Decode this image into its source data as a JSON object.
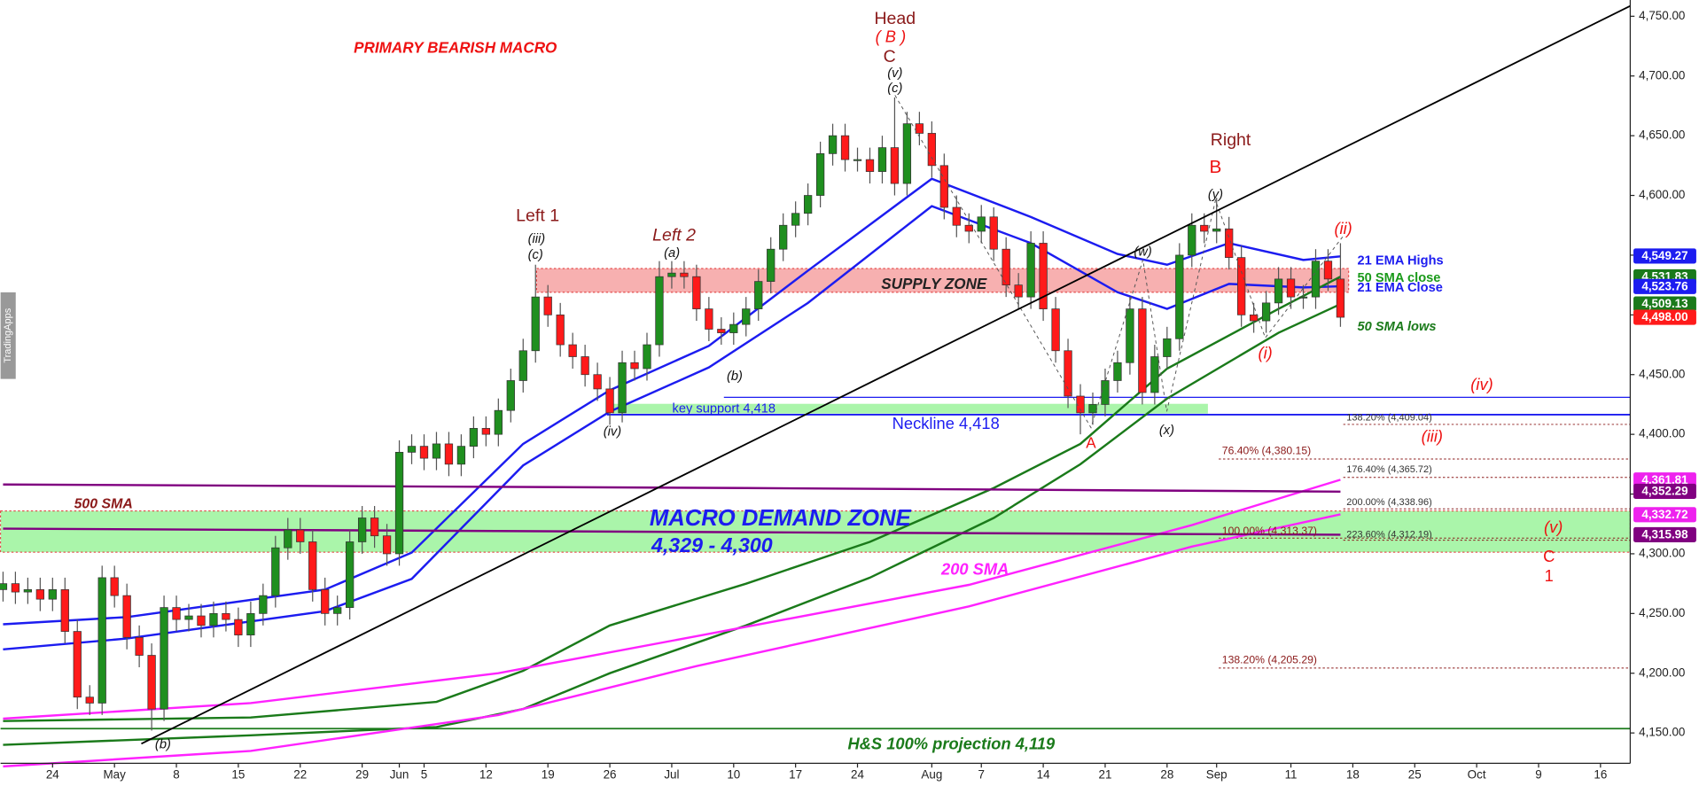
{
  "chart_data": {
    "type": "candlestick",
    "xlim": [
      -0.2,
      131.4
    ],
    "ylim": [
      4105.6,
      4763.6
    ],
    "grid": false,
    "up_color": "#1f8f1f",
    "down_color": "#ff1a1a",
    "xticks": [
      {
        "value": 4,
        "label": "24"
      },
      {
        "value": 9,
        "label": "May"
      },
      {
        "value": 14,
        "label": "8"
      },
      {
        "value": 19,
        "label": "15"
      },
      {
        "value": 24,
        "label": "22"
      },
      {
        "value": 29,
        "label": "29"
      },
      {
        "value": 32,
        "label": "Jun"
      },
      {
        "value": 34,
        "label": "5"
      },
      {
        "value": 39,
        "label": "12"
      },
      {
        "value": 44,
        "label": "19"
      },
      {
        "value": 49,
        "label": "26"
      },
      {
        "value": 54,
        "label": "Jul"
      },
      {
        "value": 59,
        "label": "10"
      },
      {
        "value": 64,
        "label": "17"
      },
      {
        "value": 69,
        "label": "24"
      },
      {
        "value": 75,
        "label": "Aug"
      },
      {
        "value": 79,
        "label": "7"
      },
      {
        "value": 84,
        "label": "14"
      },
      {
        "value": 89,
        "label": "21"
      },
      {
        "value": 94,
        "label": "28"
      },
      {
        "value": 98,
        "label": "Sep"
      },
      {
        "value": 104,
        "label": "11"
      },
      {
        "value": 109,
        "label": "18"
      },
      {
        "value": 114,
        "label": "25"
      },
      {
        "value": 119,
        "label": "Oct"
      },
      {
        "value": 124,
        "label": "9"
      },
      {
        "value": 129,
        "label": "16"
      }
    ],
    "yticks": [
      {
        "value": 4150,
        "label": "4,150.00"
      },
      {
        "value": 4200,
        "label": "4,200.00"
      },
      {
        "value": 4250,
        "label": "4,250.00"
      },
      {
        "value": 4300,
        "label": "4,300.00"
      },
      {
        "value": 4350,
        "label": "4,350.00"
      },
      {
        "value": 4400,
        "label": "4,400.00"
      },
      {
        "value": 4450,
        "label": "4,450.00"
      },
      {
        "value": 4500,
        "label": "4,500.00"
      },
      {
        "value": 4550,
        "label": "4,550.00"
      },
      {
        "value": 4600,
        "label": "4,600.00"
      },
      {
        "value": 4650,
        "label": "4,650.00"
      },
      {
        "value": 4700,
        "label": "4,700.00"
      },
      {
        "value": 4750,
        "label": "4,750.00"
      }
    ],
    "open": [
      4270,
      4275,
      4268,
      4270,
      4262,
      4270,
      4235,
      4180,
      4175,
      4280,
      4265,
      4230,
      4215,
      4170,
      4255,
      4245,
      4248,
      4240,
      4250,
      4245,
      4232,
      4250,
      4265,
      4305,
      4320,
      4310,
      4270,
      4250,
      4255,
      4310,
      4330,
      4315,
      4300,
      4385,
      4390,
      4380,
      4392,
      4375,
      4390,
      4405,
      4400,
      4420,
      4445,
      4470,
      4515,
      4500,
      4475,
      4465,
      4450,
      4438,
      4418,
      4460,
      4455,
      4475,
      4532,
      4535,
      4532,
      4505,
      4488,
      4485,
      4492,
      4505,
      4528,
      4555,
      4575,
      4585,
      4600,
      4635,
      4650,
      4630,
      4630,
      4620,
      4640,
      4610,
      4660,
      4652,
      4625,
      4590,
      4575,
      4570,
      4582,
      4555,
      4525,
      4515,
      4560,
      4505,
      4470,
      4432,
      4418,
      4425,
      4445,
      4460,
      4505,
      4435,
      4465,
      4480,
      4550,
      4575,
      4570,
      4572,
      4548,
      4500,
      4495,
      4510,
      4530,
      4515,
      4515,
      4545,
      4530
    ],
    "high": [
      4285,
      4285,
      4280,
      4280,
      4280,
      4280,
      4245,
      4190,
      4290,
      4290,
      4275,
      4240,
      4225,
      4265,
      4265,
      4258,
      4258,
      4260,
      4260,
      4255,
      4260,
      4275,
      4315,
      4330,
      4330,
      4320,
      4280,
      4265,
      4320,
      4340,
      4340,
      4325,
      4395,
      4400,
      4400,
      4402,
      4402,
      4400,
      4415,
      4415,
      4430,
      4455,
      4480,
      4542,
      4525,
      4510,
      4485,
      4475,
      4460,
      4448,
      4470,
      4470,
      4485,
      4545,
      4545,
      4545,
      4542,
      4515,
      4498,
      4502,
      4515,
      4538,
      4565,
      4585,
      4595,
      4610,
      4645,
      4660,
      4660,
      4640,
      4640,
      4650,
      4682,
      4670,
      4670,
      4662,
      4635,
      4600,
      4585,
      4592,
      4590,
      4565,
      4535,
      4570,
      4570,
      4515,
      4480,
      4442,
      4435,
      4455,
      4470,
      4515,
      4515,
      4475,
      4490,
      4560,
      4585,
      4585,
      4598,
      4582,
      4558,
      4510,
      4520,
      4540,
      4540,
      4525,
      4555,
      4555,
      4560
    ],
    "low": [
      4260,
      4258,
      4258,
      4252,
      4252,
      4225,
      4170,
      4165,
      4165,
      4255,
      4220,
      4205,
      4152,
      4160,
      4235,
      4235,
      4230,
      4230,
      4235,
      4222,
      4222,
      4240,
      4255,
      4295,
      4300,
      4260,
      4240,
      4240,
      4245,
      4300,
      4305,
      4290,
      4290,
      4375,
      4370,
      4370,
      4365,
      4365,
      4380,
      4390,
      4390,
      4410,
      4435,
      4460,
      4490,
      4465,
      4455,
      4440,
      4428,
      4408,
      4410,
      4445,
      4445,
      4465,
      4522,
      4522,
      4495,
      4478,
      4475,
      4475,
      4482,
      4495,
      4518,
      4545,
      4565,
      4575,
      4590,
      4625,
      4620,
      4620,
      4610,
      4610,
      4600,
      4600,
      4642,
      4615,
      4580,
      4565,
      4560,
      4560,
      4545,
      4515,
      4505,
      4505,
      4495,
      4460,
      4422,
      4400,
      4408,
      4415,
      4435,
      4450,
      4425,
      4425,
      4455,
      4470,
      4540,
      4560,
      4560,
      4538,
      4490,
      4485,
      4485,
      4500,
      4505,
      4505,
      4505,
      4520,
      4490
    ],
    "close": [
      4275,
      4268,
      4270,
      4262,
      4270,
      4235,
      4180,
      4175,
      4280,
      4265,
      4230,
      4215,
      4170,
      4255,
      4245,
      4248,
      4240,
      4250,
      4245,
      4232,
      4250,
      4265,
      4305,
      4320,
      4310,
      4270,
      4250,
      4255,
      4310,
      4330,
      4315,
      4300,
      4385,
      4390,
      4380,
      4392,
      4375,
      4390,
      4405,
      4400,
      4420,
      4445,
      4470,
      4515,
      4500,
      4475,
      4465,
      4450,
      4438,
      4418,
      4460,
      4455,
      4475,
      4532,
      4535,
      4532,
      4505,
      4488,
      4485,
      4492,
      4505,
      4528,
      4555,
      4575,
      4585,
      4600,
      4635,
      4650,
      4630,
      4630,
      4620,
      4640,
      4610,
      4660,
      4652,
      4625,
      4590,
      4575,
      4570,
      4582,
      4555,
      4525,
      4515,
      4560,
      4505,
      4470,
      4432,
      4418,
      4425,
      4445,
      4460,
      4505,
      4435,
      4465,
      4480,
      4550,
      4575,
      4570,
      4572,
      4548,
      4500,
      4495,
      4510,
      4530,
      4515,
      4515,
      4545,
      4530,
      4498
    ],
    "series": [
      {
        "name": "21 EMA Highs",
        "color": "#1c1cf0",
        "x": [
          0,
          10,
          26,
          33,
          42,
          49,
          57,
          65,
          75,
          83,
          90,
          94,
          99,
          105,
          108
        ],
        "values": [
          4241,
          4247,
          4270,
          4301,
          4392,
          4437,
          4474,
          4537,
          4614,
          4582,
          4551,
          4542,
          4560,
          4546,
          4549
        ]
      },
      {
        "name": "21 EMA Close",
        "color": "#1c1cf0",
        "x": [
          0,
          10,
          26,
          33,
          42,
          49,
          57,
          65,
          75,
          83,
          90,
          94,
          99,
          105,
          108
        ],
        "values": [
          4220,
          4229,
          4252,
          4279,
          4374,
          4419,
          4456,
          4510,
          4591,
          4560,
          4519,
          4505,
          4526,
          4523,
          4524
        ]
      },
      {
        "name": "50 SMA close",
        "color": "#1a7a1a",
        "x": [
          0,
          20,
          35,
          42,
          49,
          60,
          70,
          80,
          87,
          94,
          103,
          108
        ],
        "values": [
          4160,
          4163,
          4176,
          4202,
          4240,
          4275,
          4310,
          4355,
          4392,
          4455,
          4505,
          4532
        ]
      },
      {
        "name": "50 SMA lows",
        "color": "#1a7a1a",
        "x": [
          0,
          20,
          35,
          42,
          49,
          60,
          70,
          80,
          87,
          94,
          103,
          108
        ],
        "values": [
          4140,
          4148,
          4155,
          4170,
          4200,
          4240,
          4280,
          4330,
          4375,
          4430,
          4485,
          4509
        ]
      },
      {
        "name": "200 SMA",
        "color": "#ff22ff",
        "x": [
          0,
          20,
          40,
          56,
          78,
          96,
          108
        ],
        "values": [
          4162,
          4175,
          4200,
          4231,
          4274,
          4324,
          4362
        ]
      },
      {
        "color": "#ff22ff",
        "x": [
          0,
          20,
          40,
          56,
          78,
          96,
          108
        ],
        "values": [
          4122,
          4135,
          4165,
          4206,
          4256,
          4306,
          4333
        ]
      },
      {
        "name": "500 SMA",
        "color": "#800080",
        "x": [
          0,
          60,
          108
        ],
        "values": [
          4358,
          4355,
          4352
        ]
      },
      {
        "color": "#800080",
        "x": [
          0,
          60,
          108
        ],
        "values": [
          4321,
          4318,
          4316
        ]
      }
    ],
    "price_labels": [
      {
        "value": 4549.27,
        "label": "4,549.27",
        "color": "#1c1cf0"
      },
      {
        "value": 4531.83,
        "label": "4,531.83",
        "color": "#1a7a1a"
      },
      {
        "value": 4523.76,
        "label": "4,523.76",
        "color": "#1c1cf0"
      },
      {
        "value": 4509.13,
        "label": "4,509.13",
        "color": "#1a7a1a"
      },
      {
        "value": 4498.0,
        "label": "4,498.00",
        "color": "#ff1a1a"
      },
      {
        "value": 4361.81,
        "label": "4,361.81",
        "color": "#ee22ee"
      },
      {
        "value": 4352.29,
        "label": "4,352.29",
        "color": "#800080"
      },
      {
        "value": 4332.72,
        "label": "4,332.72",
        "color": "#ee22ee"
      },
      {
        "value": 4315.98,
        "label": "4,315.98",
        "color": "#800080"
      }
    ],
    "annotations": [
      "PRIMARY BEARISH MACRO",
      "Head",
      "( B )",
      "C",
      "(v)",
      "(c)",
      "Left 1",
      "(iii)",
      "(c)",
      "Left 2",
      "(a)",
      "Right",
      "B",
      "(y)",
      "(ii)",
      "(w)",
      "(i)",
      "(iv)",
      "(iii)",
      "(v)",
      "C",
      "1",
      "A",
      "(x)",
      "(b)",
      "(iv)",
      "(b)",
      "SUPPLY ZONE",
      "key support 4,418",
      "Neckline 4,418",
      "MACRO DEMAND ZONE",
      "4,329 - 4,300",
      "H&S 100% projection 4,119",
      "TradingApps"
    ],
    "fib_labels": [
      "138.20% (4,409.04)",
      "76.40% (4,380.15)",
      "176.40% (4,365.72)",
      "200.00% (4,338.96)",
      "100.00% (4,313.37)",
      "223.60% (4,312.19)",
      "138.20% (4,205.29)"
    ]
  }
}
